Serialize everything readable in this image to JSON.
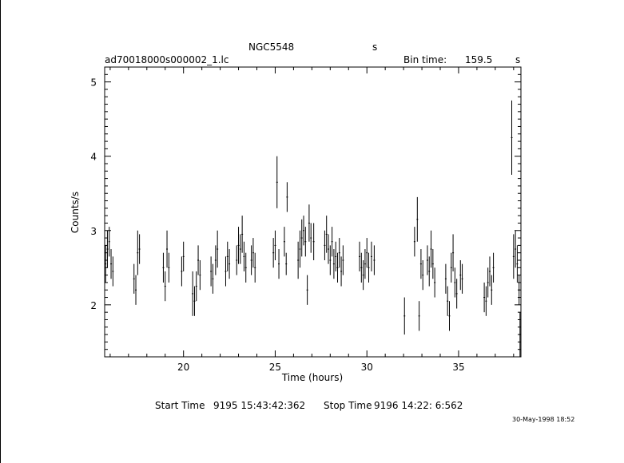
{
  "header": {
    "object": "NGC5548",
    "object_suffix": "s",
    "file_name": "ad70018000s000002_1.lc",
    "bin_time_label": "Bin time:",
    "bin_time_value": "159.5",
    "bin_time_unit": "s"
  },
  "footer": {
    "start_label": "Start Time",
    "start_value": "9195 15:43:42:362",
    "stop_label": "Stop Time",
    "stop_value": "9196 14:22: 6:562",
    "date_stamp": "30-May-1998 18:52"
  },
  "chart_data": {
    "type": "scatter",
    "title": "NGC5548",
    "xlabel": "Time (hours)",
    "ylabel": "Counts/s",
    "xlim": [
      15.7,
      38.4
    ],
    "ylim": [
      1.3,
      5.2
    ],
    "x_ticks": [
      20,
      25,
      30,
      35
    ],
    "y_ticks": [
      2,
      3,
      4,
      5
    ],
    "grid": false,
    "series": [
      {
        "points": [
          {
            "x": 15.75,
            "y": 2.55,
            "e": 0.25
          },
          {
            "x": 15.85,
            "y": 2.75,
            "e": 0.25
          },
          {
            "x": 15.95,
            "y": 2.85,
            "e": 0.2
          },
          {
            "x": 16.05,
            "y": 2.55,
            "e": 0.2
          },
          {
            "x": 16.15,
            "y": 2.45,
            "e": 0.2
          },
          {
            "x": 17.3,
            "y": 2.35,
            "e": 0.2
          },
          {
            "x": 17.4,
            "y": 2.2,
            "e": 0.2
          },
          {
            "x": 17.5,
            "y": 2.7,
            "e": 0.3
          },
          {
            "x": 17.6,
            "y": 2.75,
            "e": 0.2
          },
          {
            "x": 18.9,
            "y": 2.5,
            "e": 0.2
          },
          {
            "x": 19.0,
            "y": 2.25,
            "e": 0.2
          },
          {
            "x": 19.1,
            "y": 2.75,
            "e": 0.25
          },
          {
            "x": 19.2,
            "y": 2.5,
            "e": 0.2
          },
          {
            "x": 19.9,
            "y": 2.45,
            "e": 0.2
          },
          {
            "x": 20.0,
            "y": 2.65,
            "e": 0.2
          },
          {
            "x": 20.5,
            "y": 2.15,
            "e": 0.3
          },
          {
            "x": 20.6,
            "y": 2.05,
            "e": 0.2
          },
          {
            "x": 20.7,
            "y": 2.25,
            "e": 0.2
          },
          {
            "x": 20.8,
            "y": 2.6,
            "e": 0.2
          },
          {
            "x": 20.9,
            "y": 2.4,
            "e": 0.2
          },
          {
            "x": 21.5,
            "y": 2.45,
            "e": 0.2
          },
          {
            "x": 21.6,
            "y": 2.35,
            "e": 0.2
          },
          {
            "x": 21.75,
            "y": 2.6,
            "e": 0.2
          },
          {
            "x": 21.85,
            "y": 2.75,
            "e": 0.25
          },
          {
            "x": 22.3,
            "y": 2.45,
            "e": 0.2
          },
          {
            "x": 22.4,
            "y": 2.65,
            "e": 0.2
          },
          {
            "x": 22.5,
            "y": 2.55,
            "e": 0.2
          },
          {
            "x": 22.9,
            "y": 2.6,
            "e": 0.2
          },
          {
            "x": 23.0,
            "y": 2.8,
            "e": 0.25
          },
          {
            "x": 23.1,
            "y": 2.75,
            "e": 0.2
          },
          {
            "x": 23.2,
            "y": 2.95,
            "e": 0.25
          },
          {
            "x": 23.3,
            "y": 2.65,
            "e": 0.2
          },
          {
            "x": 23.4,
            "y": 2.5,
            "e": 0.2
          },
          {
            "x": 23.7,
            "y": 2.6,
            "e": 0.2
          },
          {
            "x": 23.8,
            "y": 2.7,
            "e": 0.2
          },
          {
            "x": 23.9,
            "y": 2.5,
            "e": 0.2
          },
          {
            "x": 24.9,
            "y": 2.7,
            "e": 0.2
          },
          {
            "x": 25.0,
            "y": 2.8,
            "e": 0.2
          },
          {
            "x": 25.1,
            "y": 3.65,
            "e": 0.35
          },
          {
            "x": 25.2,
            "y": 2.55,
            "e": 0.2
          },
          {
            "x": 25.5,
            "y": 2.85,
            "e": 0.2
          },
          {
            "x": 25.6,
            "y": 2.55,
            "e": 0.15
          },
          {
            "x": 25.65,
            "y": 3.45,
            "e": 0.2
          },
          {
            "x": 26.25,
            "y": 2.6,
            "e": 0.25
          },
          {
            "x": 26.35,
            "y": 2.75,
            "e": 0.25
          },
          {
            "x": 26.45,
            "y": 2.9,
            "e": 0.25
          },
          {
            "x": 26.55,
            "y": 3.0,
            "e": 0.2
          },
          {
            "x": 26.65,
            "y": 2.85,
            "e": 0.2
          },
          {
            "x": 26.75,
            "y": 2.2,
            "e": 0.2
          },
          {
            "x": 26.85,
            "y": 3.1,
            "e": 0.25
          },
          {
            "x": 26.95,
            "y": 2.9,
            "e": 0.2
          },
          {
            "x": 27.1,
            "y": 2.85,
            "e": 0.25
          },
          {
            "x": 27.7,
            "y": 2.8,
            "e": 0.2
          },
          {
            "x": 27.8,
            "y": 2.95,
            "e": 0.25
          },
          {
            "x": 27.9,
            "y": 2.75,
            "e": 0.2
          },
          {
            "x": 28.0,
            "y": 2.6,
            "e": 0.2
          },
          {
            "x": 28.1,
            "y": 2.85,
            "e": 0.2
          },
          {
            "x": 28.2,
            "y": 2.55,
            "e": 0.2
          },
          {
            "x": 28.3,
            "y": 2.65,
            "e": 0.2
          },
          {
            "x": 28.4,
            "y": 2.5,
            "e": 0.2
          },
          {
            "x": 28.5,
            "y": 2.7,
            "e": 0.2
          },
          {
            "x": 28.6,
            "y": 2.45,
            "e": 0.2
          },
          {
            "x": 28.7,
            "y": 2.6,
            "e": 0.2
          },
          {
            "x": 29.6,
            "y": 2.65,
            "e": 0.2
          },
          {
            "x": 29.7,
            "y": 2.5,
            "e": 0.2
          },
          {
            "x": 29.8,
            "y": 2.4,
            "e": 0.2
          },
          {
            "x": 29.9,
            "y": 2.55,
            "e": 0.2
          },
          {
            "x": 30.0,
            "y": 2.7,
            "e": 0.2
          },
          {
            "x": 30.1,
            "y": 2.5,
            "e": 0.2
          },
          {
            "x": 30.25,
            "y": 2.65,
            "e": 0.2
          },
          {
            "x": 30.4,
            "y": 2.6,
            "e": 0.2
          },
          {
            "x": 32.05,
            "y": 1.85,
            "e": 0.25
          },
          {
            "x": 32.6,
            "y": 2.85,
            "e": 0.2
          },
          {
            "x": 32.75,
            "y": 3.15,
            "e": 0.3
          },
          {
            "x": 32.85,
            "y": 1.85,
            "e": 0.2
          },
          {
            "x": 32.95,
            "y": 2.55,
            "e": 0.2
          },
          {
            "x": 33.05,
            "y": 2.4,
            "e": 0.2
          },
          {
            "x": 33.3,
            "y": 2.6,
            "e": 0.2
          },
          {
            "x": 33.4,
            "y": 2.45,
            "e": 0.2
          },
          {
            "x": 33.5,
            "y": 2.75,
            "e": 0.25
          },
          {
            "x": 33.6,
            "y": 2.55,
            "e": 0.2
          },
          {
            "x": 33.7,
            "y": 2.3,
            "e": 0.2
          },
          {
            "x": 34.3,
            "y": 2.35,
            "e": 0.2
          },
          {
            "x": 34.4,
            "y": 2.05,
            "e": 0.2
          },
          {
            "x": 34.5,
            "y": 1.85,
            "e": 0.2
          },
          {
            "x": 34.6,
            "y": 2.5,
            "e": 0.2
          },
          {
            "x": 34.7,
            "y": 2.7,
            "e": 0.25
          },
          {
            "x": 34.8,
            "y": 2.3,
            "e": 0.2
          },
          {
            "x": 34.9,
            "y": 2.15,
            "e": 0.2
          },
          {
            "x": 35.1,
            "y": 2.4,
            "e": 0.2
          },
          {
            "x": 35.2,
            "y": 2.35,
            "e": 0.2
          },
          {
            "x": 36.4,
            "y": 2.1,
            "e": 0.2
          },
          {
            "x": 36.5,
            "y": 2.05,
            "e": 0.2
          },
          {
            "x": 36.6,
            "y": 2.3,
            "e": 0.2
          },
          {
            "x": 36.7,
            "y": 2.45,
            "e": 0.2
          },
          {
            "x": 36.8,
            "y": 2.2,
            "e": 0.2
          },
          {
            "x": 36.9,
            "y": 2.5,
            "e": 0.2
          },
          {
            "x": 37.9,
            "y": 4.25,
            "e": 0.5
          },
          {
            "x": 38.0,
            "y": 2.65,
            "e": 0.3
          },
          {
            "x": 38.1,
            "y": 2.75,
            "e": 0.25
          },
          {
            "x": 38.2,
            "y": 2.55,
            "e": 0.25
          },
          {
            "x": 38.3,
            "y": 2.2,
            "e": 0.2
          },
          {
            "x": 38.35,
            "y": 1.6,
            "e": 0.3
          }
        ]
      }
    ]
  }
}
